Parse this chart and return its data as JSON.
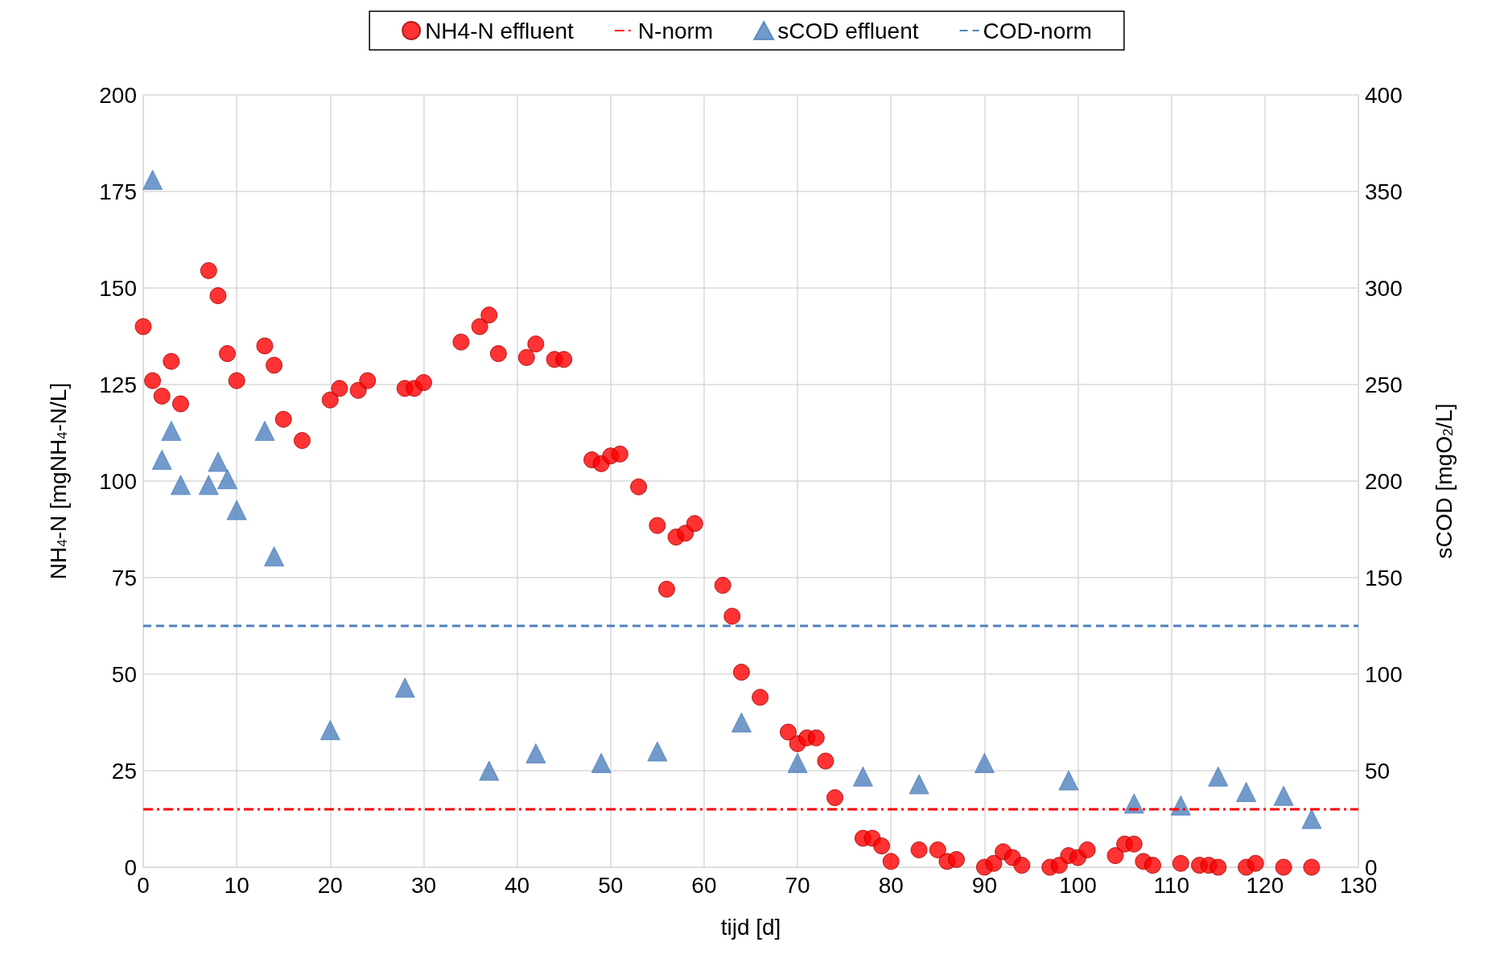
{
  "chart_data": {
    "type": "scatter",
    "xlabel": "tijd [d]",
    "ylabel": "NH$_{4}$-N [mgNH$_{4}$-N/L]",
    "y2label": "sCOD [mgO$_{2}$/L]",
    "xlim": [
      0,
      130
    ],
    "xticks": [
      0,
      10,
      20,
      30,
      40,
      50,
      60,
      70,
      80,
      90,
      100,
      110,
      120,
      130
    ],
    "ylim": [
      0,
      200
    ],
    "yticks": [
      0,
      25,
      50,
      75,
      100,
      125,
      150,
      175,
      200
    ],
    "y2lim": [
      0,
      400
    ],
    "y2ticks": [
      0,
      50,
      100,
      150,
      200,
      250,
      300,
      350,
      400
    ],
    "grid": true,
    "legend": "top",
    "series": [
      {
        "name": "NH4-N effluent",
        "color": "#ff0000",
        "marker": "circle",
        "x": [
          0,
          1,
          2,
          3,
          4,
          7,
          8,
          9,
          10,
          13,
          14,
          15,
          17,
          20,
          21,
          23,
          24,
          28,
          29,
          30,
          34,
          36,
          37,
          38,
          41,
          42,
          44,
          45,
          48,
          49,
          50,
          51,
          53,
          55,
          56,
          57,
          58,
          59,
          62,
          63,
          64,
          66,
          69,
          70,
          71,
          72,
          73,
          74,
          77,
          78,
          79,
          80,
          83,
          85,
          86,
          87,
          90,
          91,
          92,
          93,
          94,
          97,
          98,
          99,
          100,
          101,
          104,
          105,
          106,
          107,
          108,
          111,
          113,
          114,
          115,
          118,
          119,
          122,
          125
        ],
        "values": [
          140,
          126,
          122,
          131,
          120,
          154.5,
          148,
          133,
          126,
          135,
          130,
          116,
          110.5,
          121,
          124,
          123.5,
          126,
          124,
          124,
          125.5,
          136,
          140,
          143,
          133,
          132,
          135.5,
          131.5,
          131.5,
          105.5,
          104.5,
          106.5,
          107,
          98.5,
          88.5,
          72,
          85.5,
          86.5,
          89,
          73,
          65,
          50.5,
          44,
          35,
          32,
          33.5,
          33.5,
          27.5,
          18,
          7.5,
          7.5,
          5.5,
          1.5,
          4.5,
          4.5,
          1.5,
          2,
          0,
          1,
          4,
          2.5,
          0.5,
          0,
          0.5,
          3,
          2.5,
          4.5,
          3,
          6,
          6,
          1.5,
          0.5,
          1,
          0.5,
          0.5,
          0,
          0,
          1,
          0,
          0
        ]
      },
      {
        "name": "sCOD effluent",
        "color": "#4f81bd",
        "marker": "triangle",
        "axis": "y2",
        "x": [
          1,
          2,
          3,
          4,
          7,
          8,
          9,
          10,
          13,
          14,
          20,
          28,
          37,
          42,
          49,
          55,
          64,
          70,
          77,
          83,
          90,
          99,
          106,
          111,
          115,
          118,
          122,
          125
        ],
        "values": [
          356,
          211,
          226,
          198,
          198,
          210,
          201,
          185,
          226,
          161,
          71,
          93,
          50,
          59,
          54,
          60,
          75,
          54,
          47,
          43,
          54,
          45,
          33,
          32,
          47,
          39,
          37,
          25
        ]
      }
    ],
    "ref_lines": [
      {
        "axis": "y",
        "value": 15,
        "label": "N-norm",
        "color": "#ff0000",
        "line_style": "dashdot"
      },
      {
        "axis": "y2",
        "value": 125,
        "label": "COD-norm",
        "color": "#4f81bd",
        "line_style": "dashed"
      }
    ]
  }
}
